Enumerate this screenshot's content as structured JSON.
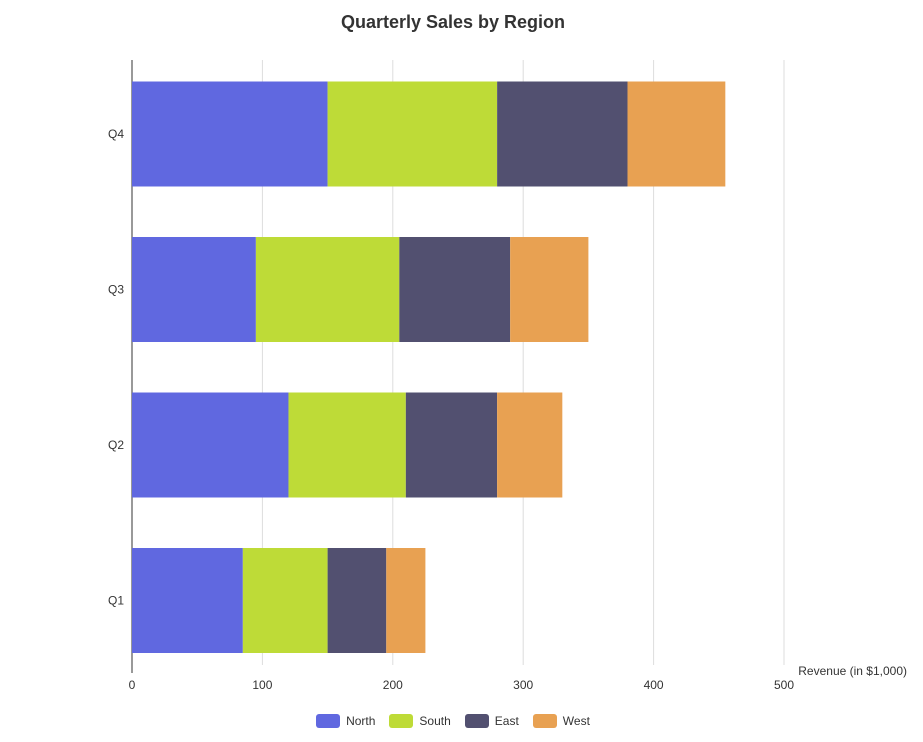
{
  "chart_data": {
    "type": "bar",
    "orientation": "horizontal",
    "stacked": true,
    "title": "Quarterly Sales by Region",
    "xlabel": "Revenue (in $1,000)",
    "ylabel": "",
    "categories": [
      "Q1",
      "Q2",
      "Q3",
      "Q4"
    ],
    "series": [
      {
        "name": "North",
        "color": "#6068E0",
        "values": [
          85,
          120,
          95,
          150
        ]
      },
      {
        "name": "South",
        "color": "#BEDB37",
        "values": [
          65,
          90,
          110,
          130
        ]
      },
      {
        "name": "East",
        "color": "#525070",
        "values": [
          45,
          70,
          85,
          100
        ]
      },
      {
        "name": "West",
        "color": "#E8A152",
        "values": [
          30,
          50,
          60,
          75
        ]
      }
    ],
    "xlim": [
      0,
      500
    ],
    "xticks": [
      0,
      100,
      200,
      300,
      400,
      500
    ],
    "grid": true,
    "legend_position": "bottom"
  }
}
